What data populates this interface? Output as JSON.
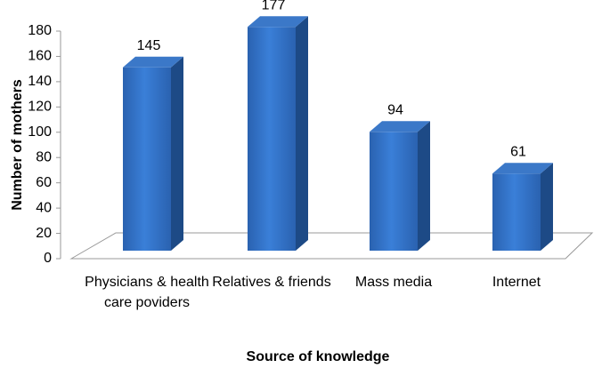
{
  "chart_data": {
    "type": "bar3d",
    "x_label": "Source of knowledge",
    "y_label": "Number of mothers",
    "categories": [
      "Physicians & health care poviders",
      "Relatives & friends",
      "Mass media",
      "Internet"
    ],
    "values": [
      145,
      177,
      94,
      61
    ],
    "color": "#2e6cc0",
    "ylim": [
      0,
      180
    ],
    "yticks": [
      0,
      20,
      40,
      60,
      80,
      100,
      120,
      140,
      160,
      180
    ]
  }
}
